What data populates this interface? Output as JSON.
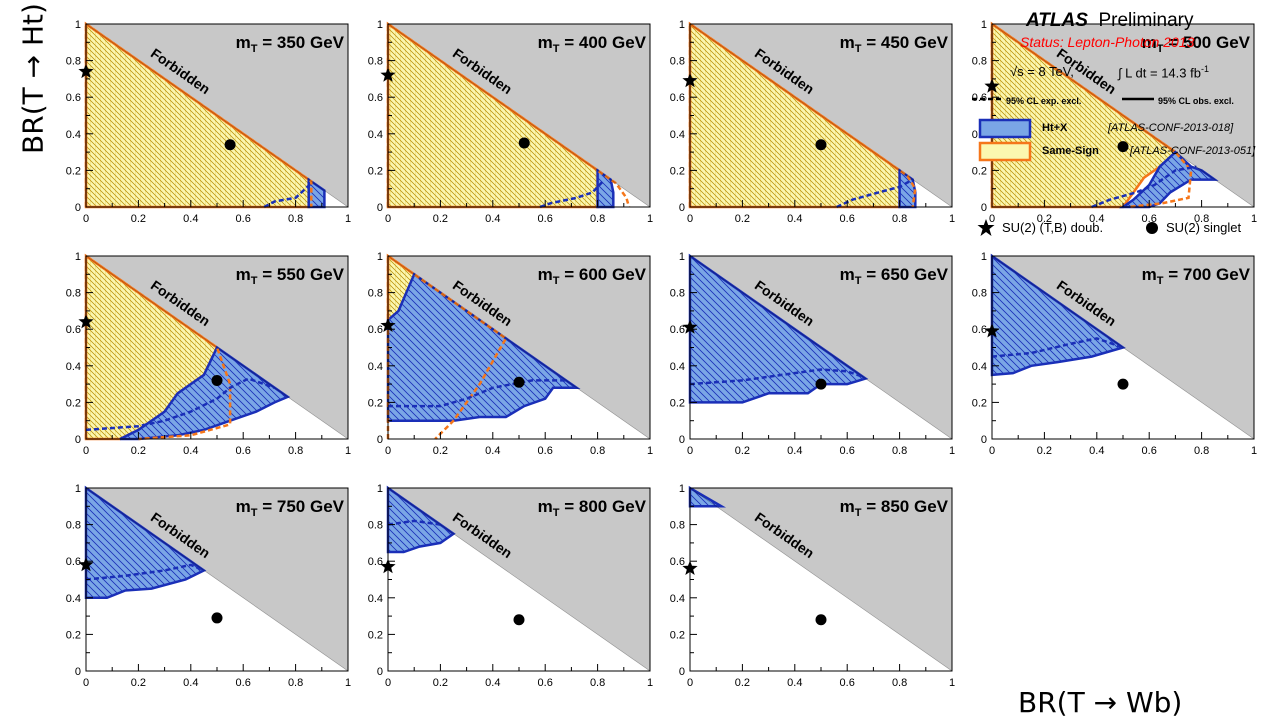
{
  "figure": {
    "x_axis_title": "BR(T → Wb)",
    "y_axis_title": "BR(T → Ht)",
    "forbidden_label": "Forbidden",
    "axis_tick_labels": [
      "0",
      "0.2",
      "0.4",
      "0.6",
      "0.8",
      "1"
    ]
  },
  "legend": {
    "experiment": "ATLAS",
    "preliminary": "Preliminary",
    "status": "Status: Lepton-Photon 2013",
    "energy": "√s = 8 TeV,",
    "luminosity": "∫ L dt = 14.3 fb",
    "luminosity_sup": "-1",
    "exp_line": "95% CL exp. excl.",
    "obs_line": "95% CL obs. excl.",
    "htx_label": "Ht+X",
    "htx_ref": "[ATLAS-CONF-2013-018]",
    "ss_label": "Same-Sign",
    "ss_ref": "[ATLAS-CONF-2013-051]",
    "doublet_label": "SU(2) (T,B) doub.",
    "singlet_label": "SU(2) singlet"
  },
  "colors": {
    "htx_fill": "#7aa6e6",
    "htx_line": "#1a2fb8",
    "ss_fill": "#fbf7b0",
    "ss_line": "#f5761a",
    "forbidden": "#c8c8c8"
  },
  "chart_data": [
    {
      "type": "area",
      "title": "mT = 350 GeV",
      "mass": "350",
      "xlim": [
        0,
        1
      ],
      "ylim": [
        0,
        1
      ],
      "htx_observed": [
        [
          0.85,
          0
        ],
        [
          0.85,
          0.15
        ],
        [
          0.91,
          0.09
        ],
        [
          0.91,
          0
        ]
      ],
      "htx_expected": [
        [
          0.68,
          0
        ],
        [
          0.72,
          0.03
        ],
        [
          0.8,
          0.05
        ],
        [
          0.83,
          0.09
        ],
        [
          0.86,
          0.13
        ]
      ],
      "ss_observed": [
        [
          0,
          0
        ],
        [
          0,
          1
        ],
        [
          0.85,
          0.15
        ],
        [
          0.85,
          0
        ]
      ],
      "ss_expected": [
        [
          0,
          0
        ],
        [
          0,
          1
        ],
        [
          0.86,
          0.14
        ],
        [
          0.86,
          0
        ]
      ],
      "doublet": [
        0,
        0.74
      ],
      "singlet": [
        0.55,
        0.34
      ]
    },
    {
      "type": "area",
      "title": "mT = 400 GeV",
      "mass": "400",
      "xlim": [
        0,
        1
      ],
      "ylim": [
        0,
        1
      ],
      "htx_observed": [
        [
          0.8,
          0
        ],
        [
          0.8,
          0.2
        ],
        [
          0.85,
          0.15
        ],
        [
          0.86,
          0.08
        ],
        [
          0.86,
          0
        ]
      ],
      "htx_expected": [
        [
          0.58,
          0
        ],
        [
          0.62,
          0.02
        ],
        [
          0.72,
          0.05
        ],
        [
          0.78,
          0.08
        ],
        [
          0.82,
          0.14
        ]
      ],
      "ss_observed": [
        [
          0,
          0
        ],
        [
          0,
          1
        ],
        [
          0.8,
          0.2
        ],
        [
          0.8,
          0
        ]
      ],
      "ss_expected": [
        [
          0,
          0
        ],
        [
          0,
          1
        ],
        [
          0.87,
          0.13
        ],
        [
          0.91,
          0.05
        ],
        [
          0.92,
          0
        ]
      ],
      "doublet": [
        0,
        0.72
      ],
      "singlet": [
        0.52,
        0.35
      ]
    },
    {
      "type": "area",
      "title": "mT = 450 GeV",
      "mass": "450",
      "xlim": [
        0,
        1
      ],
      "ylim": [
        0,
        1
      ],
      "htx_observed": [
        [
          0.8,
          0
        ],
        [
          0.8,
          0.2
        ],
        [
          0.85,
          0.15
        ],
        [
          0.86,
          0.08
        ],
        [
          0.86,
          0
        ]
      ],
      "htx_expected": [
        [
          0.56,
          0
        ],
        [
          0.62,
          0.04
        ],
        [
          0.72,
          0.08
        ],
        [
          0.8,
          0.11
        ],
        [
          0.85,
          0.15
        ]
      ],
      "ss_observed": [
        [
          0,
          0
        ],
        [
          0,
          1
        ],
        [
          0.8,
          0.2
        ],
        [
          0.8,
          0
        ]
      ],
      "ss_expected": [
        [
          0,
          0
        ],
        [
          0,
          1
        ],
        [
          0.83,
          0.17
        ],
        [
          0.86,
          0.1
        ],
        [
          0.85,
          0
        ]
      ],
      "doublet": [
        0,
        0.69
      ],
      "singlet": [
        0.5,
        0.34
      ]
    },
    {
      "type": "area",
      "title": "mT = 500 GeV",
      "mass": "500",
      "xlim": [
        0,
        1
      ],
      "ylim": [
        0,
        1
      ],
      "htx_observed": [
        [
          0.5,
          0
        ],
        [
          0.54,
          0.04
        ],
        [
          0.6,
          0.12
        ],
        [
          0.64,
          0.22
        ],
        [
          0.7,
          0.3
        ],
        [
          0.76,
          0.22
        ],
        [
          0.8,
          0.2
        ],
        [
          0.85,
          0.15
        ],
        [
          0.76,
          0.15
        ],
        [
          0.68,
          0.08
        ],
        [
          0.64,
          0.02
        ],
        [
          0.6,
          0
        ]
      ],
      "htx_expected": [
        [
          0.38,
          0
        ],
        [
          0.45,
          0.04
        ],
        [
          0.55,
          0.08
        ],
        [
          0.62,
          0.12
        ],
        [
          0.7,
          0.2
        ],
        [
          0.78,
          0.22
        ]
      ],
      "ss_observed": [
        [
          0,
          0
        ],
        [
          0,
          1
        ],
        [
          0.7,
          0.3
        ],
        [
          0.66,
          0.24
        ],
        [
          0.58,
          0.16
        ],
        [
          0.5,
          0
        ]
      ],
      "ss_expected": [
        [
          0,
          0
        ],
        [
          0,
          1
        ],
        [
          0.7,
          0.3
        ],
        [
          0.76,
          0.2
        ],
        [
          0.75,
          0.05
        ],
        [
          0.65,
          0.02
        ],
        [
          0.52,
          0
        ]
      ],
      "doublet": [
        0,
        0.66
      ],
      "singlet": [
        0.5,
        0.33
      ]
    },
    {
      "type": "area",
      "title": "mT = 550 GeV",
      "mass": "550",
      "xlim": [
        0,
        1
      ],
      "ylim": [
        0,
        1
      ],
      "htx_observed": [
        [
          0.13,
          0
        ],
        [
          0.2,
          0.05
        ],
        [
          0.3,
          0.15
        ],
        [
          0.35,
          0.25
        ],
        [
          0.45,
          0.35
        ],
        [
          0.5,
          0.5
        ],
        [
          0.55,
          0.45
        ],
        [
          0.77,
          0.23
        ],
        [
          0.72,
          0.2
        ],
        [
          0.65,
          0.15
        ],
        [
          0.55,
          0.1
        ],
        [
          0.45,
          0.05
        ],
        [
          0.35,
          0.02
        ],
        [
          0.2,
          0
        ]
      ],
      "htx_expected": [
        [
          0,
          0.05
        ],
        [
          0.2,
          0.07
        ],
        [
          0.3,
          0.1
        ],
        [
          0.4,
          0.15
        ],
        [
          0.5,
          0.22
        ],
        [
          0.55,
          0.28
        ],
        [
          0.62,
          0.33
        ],
        [
          0.72,
          0.28
        ]
      ],
      "ss_observed": [
        [
          0,
          0
        ],
        [
          0,
          1
        ],
        [
          0.5,
          0.5
        ],
        [
          0.45,
          0.35
        ],
        [
          0.35,
          0.25
        ],
        [
          0.3,
          0.15
        ],
        [
          0.2,
          0.05
        ],
        [
          0.13,
          0
        ]
      ],
      "ss_expected": [
        [
          0,
          0
        ],
        [
          0,
          1
        ],
        [
          0.5,
          0.5
        ],
        [
          0.55,
          0.3
        ],
        [
          0.55,
          0.08
        ],
        [
          0.4,
          0.02
        ],
        [
          0.2,
          0
        ]
      ],
      "doublet": [
        0,
        0.64
      ],
      "singlet": [
        0.5,
        0.32
      ]
    },
    {
      "type": "area",
      "title": "mT = 600 GeV",
      "mass": "600",
      "xlim": [
        0,
        1
      ],
      "ylim": [
        0,
        1
      ],
      "htx_observed": [
        [
          0,
          0.1
        ],
        [
          0,
          0.65
        ],
        [
          0.04,
          0.7
        ],
        [
          0.1,
          0.9
        ],
        [
          0.72,
          0.28
        ],
        [
          0.63,
          0.28
        ],
        [
          0.6,
          0.22
        ],
        [
          0.52,
          0.18
        ],
        [
          0.45,
          0.12
        ],
        [
          0.35,
          0.12
        ],
        [
          0.25,
          0.1
        ]
      ],
      "htx_expected": [
        [
          0,
          0.18
        ],
        [
          0.2,
          0.18
        ],
        [
          0.3,
          0.22
        ],
        [
          0.4,
          0.28
        ],
        [
          0.55,
          0.32
        ],
        [
          0.68,
          0.32
        ]
      ],
      "ss_observed": [
        [
          0,
          0.65
        ],
        [
          0,
          1
        ],
        [
          0.13,
          0.87
        ],
        [
          0.1,
          0.78
        ],
        [
          0.05,
          0.7
        ]
      ],
      "ss_expected": [
        [
          0,
          0
        ],
        [
          0,
          1
        ],
        [
          0.2,
          0.8
        ],
        [
          0.45,
          0.55
        ],
        [
          0.35,
          0.3
        ],
        [
          0.25,
          0.1
        ],
        [
          0.18,
          0
        ]
      ],
      "doublet": [
        0,
        0.62
      ],
      "singlet": [
        0.5,
        0.31
      ]
    },
    {
      "type": "area",
      "title": "mT = 650 GeV",
      "mass": "650",
      "xlim": [
        0,
        1
      ],
      "ylim": [
        0,
        1
      ],
      "htx_observed": [
        [
          0,
          0.2
        ],
        [
          0,
          1
        ],
        [
          0.67,
          0.33
        ],
        [
          0.6,
          0.3
        ],
        [
          0.5,
          0.3
        ],
        [
          0.45,
          0.25
        ],
        [
          0.3,
          0.25
        ],
        [
          0.2,
          0.2
        ]
      ],
      "htx_expected": [
        [
          0,
          0.3
        ],
        [
          0.2,
          0.32
        ],
        [
          0.35,
          0.35
        ],
        [
          0.5,
          0.38
        ],
        [
          0.6,
          0.37
        ],
        [
          0.66,
          0.34
        ]
      ],
      "ss_observed": [],
      "ss_expected": [],
      "doublet": [
        0,
        0.61
      ],
      "singlet": [
        0.5,
        0.3
      ]
    },
    {
      "type": "area",
      "title": "mT = 700 GeV",
      "mass": "700",
      "xlim": [
        0,
        1
      ],
      "ylim": [
        0,
        1
      ],
      "htx_observed": [
        [
          0,
          0.35
        ],
        [
          0,
          1
        ],
        [
          0.5,
          0.5
        ],
        [
          0.38,
          0.45
        ],
        [
          0.25,
          0.42
        ],
        [
          0.15,
          0.4
        ],
        [
          0.08,
          0.36
        ]
      ],
      "htx_expected": [
        [
          0,
          0.45
        ],
        [
          0.15,
          0.47
        ],
        [
          0.3,
          0.52
        ],
        [
          0.4,
          0.55
        ],
        [
          0.5,
          0.5
        ]
      ],
      "ss_observed": [],
      "ss_expected": [],
      "doublet": [
        0,
        0.59
      ],
      "singlet": [
        0.5,
        0.3
      ]
    },
    {
      "type": "area",
      "title": "mT = 750 GeV",
      "mass": "750",
      "xlim": [
        0,
        1
      ],
      "ylim": [
        0,
        1
      ],
      "htx_observed": [
        [
          0,
          0.4
        ],
        [
          0,
          1
        ],
        [
          0.45,
          0.55
        ],
        [
          0.38,
          0.5
        ],
        [
          0.25,
          0.45
        ],
        [
          0.15,
          0.44
        ],
        [
          0.08,
          0.4
        ]
      ],
      "htx_expected": [
        [
          0,
          0.5
        ],
        [
          0.15,
          0.52
        ],
        [
          0.3,
          0.55
        ],
        [
          0.4,
          0.58
        ],
        [
          0.45,
          0.55
        ]
      ],
      "ss_observed": [],
      "ss_expected": [],
      "doublet": [
        0,
        0.58
      ],
      "singlet": [
        0.5,
        0.29
      ]
    },
    {
      "type": "area",
      "title": "mT = 800 GeV",
      "mass": "800",
      "xlim": [
        0,
        1
      ],
      "ylim": [
        0,
        1
      ],
      "htx_observed": [
        [
          0,
          0.65
        ],
        [
          0,
          1
        ],
        [
          0.25,
          0.75
        ],
        [
          0.2,
          0.7
        ],
        [
          0.12,
          0.68
        ],
        [
          0.06,
          0.65
        ]
      ],
      "htx_expected": [
        [
          0,
          0.8
        ],
        [
          0.1,
          0.82
        ],
        [
          0.2,
          0.8
        ]
      ],
      "ss_observed": [],
      "ss_expected": [],
      "doublet": [
        0,
        0.57
      ],
      "singlet": [
        0.5,
        0.28
      ]
    },
    {
      "type": "area",
      "title": "mT = 850 GeV",
      "mass": "850",
      "xlim": [
        0,
        1
      ],
      "ylim": [
        0,
        1
      ],
      "htx_observed": [
        [
          0,
          0.9
        ],
        [
          0,
          1
        ],
        [
          0.12,
          0.9
        ]
      ],
      "htx_expected": [],
      "ss_observed": [],
      "ss_expected": [],
      "doublet": [
        0,
        0.56
      ],
      "singlet": [
        0.5,
        0.28
      ]
    }
  ]
}
